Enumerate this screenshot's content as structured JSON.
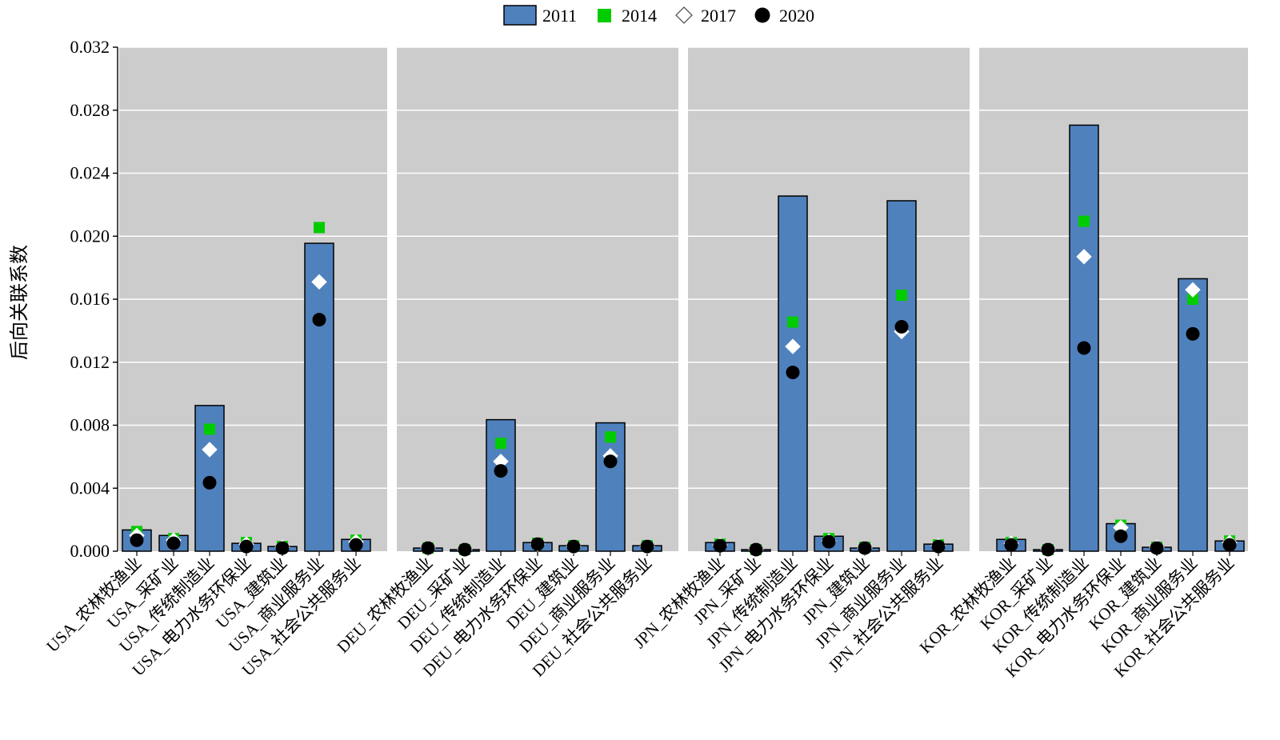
{
  "chart_data": {
    "type": "bar",
    "ylabel": "后向关联系数",
    "ylim": [
      0,
      0.032
    ],
    "yticks": [
      "0.000",
      "0.004",
      "0.008",
      "0.012",
      "0.016",
      "0.020",
      "0.024",
      "0.028",
      "0.032"
    ],
    "grid": true,
    "legend_position": "top-center",
    "legend": [
      {
        "name": "2011",
        "marker": "bar",
        "color": "#4f81bd"
      },
      {
        "name": "2014",
        "marker": "square",
        "color": "#00cc00"
      },
      {
        "name": "2017",
        "marker": "diamond",
        "color": "#ffffff"
      },
      {
        "name": "2020",
        "marker": "circle",
        "color": "#000000"
      }
    ],
    "panels": [
      {
        "country": "USA",
        "categories": [
          "USA_农林牧渔业",
          "USA_采矿业",
          "USA_传统制造业",
          "USA_电力水务环保业",
          "USA_建筑业",
          "USA_商业服务业",
          "USA_社会公共服务业"
        ],
        "series": [
          {
            "name": "2011",
            "values": [
              0.00135,
              0.001,
              0.00925,
              0.0005,
              0.0003,
              0.01955,
              0.00075
            ]
          },
          {
            "name": "2014",
            "values": [
              0.00125,
              0.0008,
              0.00775,
              0.00055,
              0.0003,
              0.02055,
              0.0007
            ]
          },
          {
            "name": "2017",
            "values": [
              0.001,
              0.0007,
              0.00645,
              0.00045,
              0.00025,
              0.0171,
              0.0006
            ]
          },
          {
            "name": "2020",
            "values": [
              0.0007,
              0.0005,
              0.00435,
              0.0003,
              0.0002,
              0.0147,
              0.0004
            ]
          }
        ]
      },
      {
        "country": "DEU",
        "categories": [
          "DEU_农林牧渔业",
          "DEU_采矿业",
          "DEU_传统制造业",
          "DEU_电力水务环保业",
          "DEU_建筑业",
          "DEU_商业服务业",
          "DEU_社会公共服务业"
        ],
        "series": [
          {
            "name": "2011",
            "values": [
              0.0002,
              0.0001,
              0.00835,
              0.00055,
              0.00035,
              0.00815,
              0.00035
            ]
          },
          {
            "name": "2014",
            "values": [
              0.0002,
              0.0001,
              0.00685,
              0.0005,
              0.00035,
              0.00725,
              0.00035
            ]
          },
          {
            "name": "2017",
            "values": [
              0.0002,
              0.0001,
              0.0057,
              0.00045,
              0.0003,
              0.00605,
              0.0003
            ]
          },
          {
            "name": "2020",
            "values": [
              0.0002,
              0.0001,
              0.0051,
              0.00045,
              0.0003,
              0.0057,
              0.0003
            ]
          }
        ]
      },
      {
        "country": "JPN",
        "categories": [
          "JPN_农林牧渔业",
          "JPN_采矿业",
          "JPN_传统制造业",
          "JPN_电力水务环保业",
          "JPN_建筑业",
          "JPN_商业服务业",
          "JPN_社会公共服务业"
        ],
        "series": [
          {
            "name": "2011",
            "values": [
              0.00055,
              0.0001,
              0.02255,
              0.00095,
              0.0002,
              0.02225,
              0.00045
            ]
          },
          {
            "name": "2014",
            "values": [
              0.00045,
              0.0001,
              0.01455,
              0.0008,
              0.00025,
              0.01625,
              0.0004
            ]
          },
          {
            "name": "2017",
            "values": [
              0.0004,
              0.0001,
              0.013,
              0.00065,
              0.0002,
              0.01395,
              0.00035
            ]
          },
          {
            "name": "2020",
            "values": [
              0.00035,
              0.0001,
              0.01135,
              0.0006,
              0.0002,
              0.01425,
              0.0003
            ]
          }
        ]
      },
      {
        "country": "KOR",
        "categories": [
          "KOR_农林牧渔业",
          "KOR_采矿业",
          "KOR_传统制造业",
          "KOR_电力水务环保业",
          "KOR_建筑业",
          "KOR_商业服务业",
          "KOR_社会公共服务业"
        ],
        "series": [
          {
            "name": "2011",
            "values": [
              0.00075,
              0.0001,
              0.02705,
              0.00175,
              0.00025,
              0.0173,
              0.00065
            ]
          },
          {
            "name": "2014",
            "values": [
              0.00055,
              0.0001,
              0.02095,
              0.00165,
              0.00025,
              0.016,
              0.00065
            ]
          },
          {
            "name": "2017",
            "values": [
              0.0005,
              0.0001,
              0.0187,
              0.0015,
              0.00025,
              0.0166,
              0.00055
            ]
          },
          {
            "name": "2020",
            "values": [
              0.0004,
              0.0001,
              0.0129,
              0.00095,
              0.0002,
              0.0138,
              0.0004
            ]
          }
        ]
      }
    ]
  }
}
